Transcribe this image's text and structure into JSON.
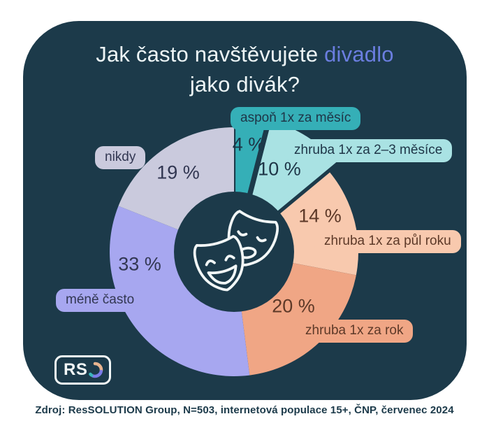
{
  "title": {
    "prefix": "Jak často navštěvujete",
    "highlight": "divadlo",
    "line2": "jako divák?"
  },
  "colors": {
    "page_bg": "#FFFFFF",
    "card_bg": "#1C3A4A",
    "title_text": "#EDF5F6",
    "highlight": "#6B7EE0",
    "source_text": "#1C3A4A",
    "mask_stroke": "#F2F7F7"
  },
  "chart_data": {
    "type": "pie",
    "subtype": "donut",
    "title": "Jak často navštěvujete divadlo jako divák?",
    "start_angle": "top",
    "direction": "clockwise",
    "center_icon": "theater-masks",
    "slices": [
      {
        "label": "aspoň 1x za měsíc",
        "value": 4,
        "percent_label": "4 %",
        "color": "#35AFB7",
        "text_color": "#1E3547",
        "exploded": true
      },
      {
        "label": "zhruba 1x za 2–3 měsíce",
        "value": 10,
        "percent_label": "10 %",
        "color": "#A9E2E3",
        "text_color": "#1E3547",
        "exploded": true
      },
      {
        "label": "zhruba 1x za půl roku",
        "value": 14,
        "percent_label": "14 %",
        "color": "#F8C9AE",
        "text_color": "#5D3928",
        "exploded": false
      },
      {
        "label": "zhruba 1x za rok",
        "value": 20,
        "percent_label": "20 %",
        "color": "#F0A685",
        "text_color": "#5D3928",
        "exploded": false
      },
      {
        "label": "méně často",
        "value": 33,
        "percent_label": "33 %",
        "color": "#A7A7F0",
        "text_color": "#323752",
        "exploded": false
      },
      {
        "label": "nikdy",
        "value": 19,
        "percent_label": "19 %",
        "color": "#CACADD",
        "text_color": "#323752",
        "exploded": false
      }
    ]
  },
  "logo": {
    "text": "RS",
    "arc_colors": [
      "#E8B48F",
      "#7B7BE8",
      "#3AB5BC"
    ]
  },
  "source": "Zdroj: ResSOLUTION Group, N=503, internetová populace 15+, ČNP, červenec 2024"
}
